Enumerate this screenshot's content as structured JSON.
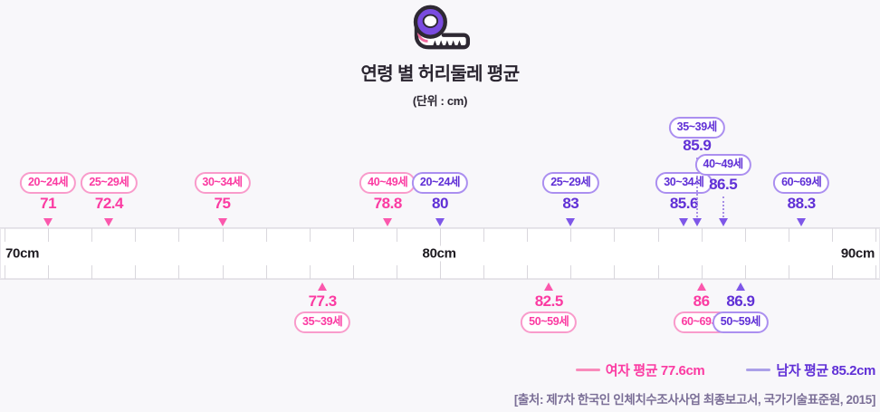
{
  "header": {
    "icon": "tape-measure-icon",
    "title": "연령 별 허리둘레 평균",
    "subtitle": "(단위 : cm)"
  },
  "chart_data": {
    "type": "scatter",
    "title": "연령 별 허리둘레 평균",
    "unit": "cm",
    "axis": {
      "min": 70,
      "max": 90,
      "tick_step": 1,
      "labels": [
        {
          "text": "70cm",
          "value": 70,
          "align": "left"
        },
        {
          "text": "80cm",
          "value": 80,
          "align": "center"
        },
        {
          "text": "90cm",
          "value": 90,
          "align": "right"
        }
      ]
    },
    "series": [
      {
        "name": "여자 평균 77.6cm",
        "gender": "female",
        "mean": 77.6,
        "color": "#fb3ba2",
        "light": "#f99bcb",
        "triangle": "#fb58ad",
        "legend_line": "#f98bbb",
        "points": [
          {
            "age": "20~24세",
            "value": 71,
            "label": "71",
            "side": "above",
            "row": 0
          },
          {
            "age": "25~29세",
            "value": 72.4,
            "label": "72.4",
            "side": "above",
            "row": 0
          },
          {
            "age": "30~34세",
            "value": 75,
            "label": "75",
            "side": "above",
            "row": 0
          },
          {
            "age": "35~39세",
            "value": 77.3,
            "label": "77.3",
            "side": "below",
            "row": 0
          },
          {
            "age": "40~49세",
            "value": 78.8,
            "label": "78.8",
            "side": "above",
            "row": 0
          },
          {
            "age": "50~59세",
            "value": 82.5,
            "label": "82.5",
            "side": "below",
            "row": 0
          },
          {
            "age": "60~69세",
            "value": 86,
            "label": "86",
            "side": "below",
            "row": 0
          }
        ]
      },
      {
        "name": "남자 평균 85.2cm",
        "gender": "male",
        "mean": 85.2,
        "color": "#6030d6",
        "light": "#ab8ff0",
        "triangle": "#7e57e8",
        "legend_line": "#aba0e8",
        "points": [
          {
            "age": "20~24세",
            "value": 80,
            "label": "80",
            "side": "above",
            "row": 0
          },
          {
            "age": "25~29세",
            "value": 83,
            "label": "83",
            "side": "above",
            "row": 0
          },
          {
            "age": "30~34세",
            "value": 85.6,
            "label": "85.6",
            "side": "above",
            "row": 0
          },
          {
            "age": "35~39세",
            "value": 85.9,
            "label": "85.9",
            "side": "above",
            "row": 2,
            "dotted": true
          },
          {
            "age": "40~49세",
            "value": 86.5,
            "label": "86.5",
            "side": "above",
            "row": 1,
            "dotted": true
          },
          {
            "age": "50~59세",
            "value": 86.9,
            "label": "86.9",
            "side": "below",
            "row": 0
          },
          {
            "age": "60~69세",
            "value": 88.3,
            "label": "88.3",
            "side": "above",
            "row": 0
          }
        ]
      }
    ],
    "legend_position": "bottom-right",
    "source": "[출처: 제7차 한국인 인체치수조사사업 최종보고서, 국가기술표준원, 2015]"
  }
}
